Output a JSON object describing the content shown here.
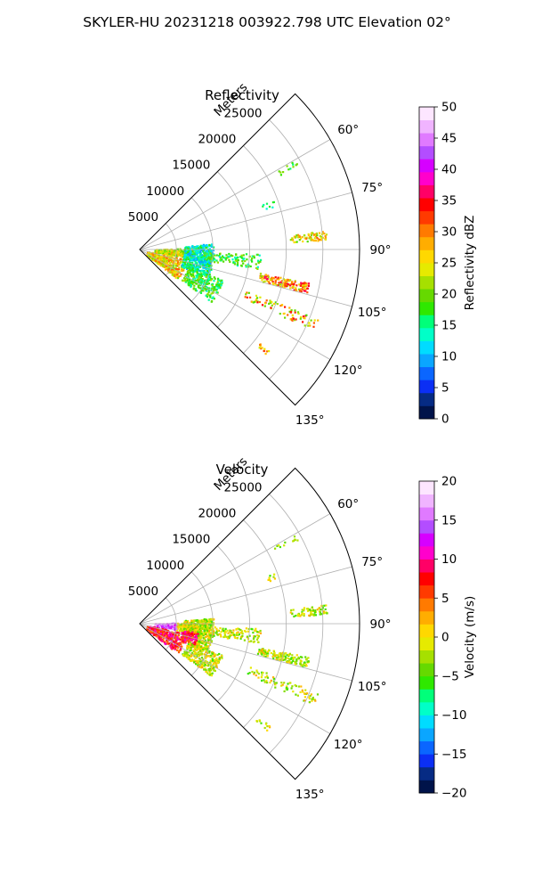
{
  "title": "SKYLER-HU  20231218  003922.798 UTC Elevation 02°",
  "chart_data": [
    {
      "type": "heatmap",
      "subtype": "polar-sector-ppi",
      "title": "Reflectivity",
      "radial_label": "Meters",
      "radial_ticks": [
        5000,
        10000,
        15000,
        20000,
        25000
      ],
      "radial_tick_labels": [
        "5000",
        "10000",
        "15000",
        "20000",
        "25000"
      ],
      "radial_max": 30000,
      "azimuth_range": [
        45,
        135
      ],
      "azimuth_ticks": [
        60,
        75,
        90,
        105,
        120,
        135
      ],
      "azimuth_tick_labels": [
        "60°",
        "75°",
        "90°",
        "105°",
        "120°",
        "135°"
      ],
      "grid": true,
      "colorbar": {
        "label": "Reflectivity dBZ",
        "vmin": 0,
        "vmax": 50,
        "ticks": [
          0,
          5,
          10,
          15,
          20,
          25,
          30,
          35,
          40,
          45,
          50
        ],
        "tick_labels": [
          "0",
          "5",
          "10",
          "15",
          "20",
          "25",
          "30",
          "35",
          "40",
          "45",
          "50"
        ],
        "stops": [
          "#00134a",
          "#062b84",
          "#0b2ff4",
          "#0a66ff",
          "#0aa6ff",
          "#00dcff",
          "#00ffc8",
          "#00ff7a",
          "#2fe800",
          "#66d900",
          "#a6e000",
          "#e6ea00",
          "#ffd800",
          "#ffad00",
          "#ff7a00",
          "#ff3a00",
          "#ff0000",
          "#ff0066",
          "#ff00cc",
          "#d600ff",
          "#b34dff",
          "#e07aff",
          "#f0b4ff",
          "#fde6ff"
        ]
      }
    },
    {
      "type": "heatmap",
      "subtype": "polar-sector-ppi",
      "title": "Velocity",
      "radial_label": "Meters",
      "radial_ticks": [
        5000,
        10000,
        15000,
        20000,
        25000
      ],
      "radial_tick_labels": [
        "5000",
        "10000",
        "15000",
        "20000",
        "25000"
      ],
      "radial_max": 30000,
      "azimuth_range": [
        45,
        135
      ],
      "azimuth_ticks": [
        60,
        75,
        90,
        105,
        120,
        135
      ],
      "azimuth_tick_labels": [
        "60°",
        "75°",
        "90°",
        "105°",
        "120°",
        "135°"
      ],
      "grid": true,
      "colorbar": {
        "label": "Velocity (m/s)",
        "vmin": -20,
        "vmax": 20,
        "ticks": [
          -20,
          -15,
          -10,
          -5,
          0,
          5,
          10,
          15,
          20
        ],
        "tick_labels": [
          "−20",
          "−15",
          "−10",
          "−5",
          "0",
          "5",
          "10",
          "15",
          "20"
        ],
        "stops": [
          "#00134a",
          "#062b84",
          "#0b2ff4",
          "#0a66ff",
          "#0aa6ff",
          "#00dcff",
          "#00ffc8",
          "#00ff7a",
          "#2fe800",
          "#66d900",
          "#a6e000",
          "#e6ea00",
          "#ffd800",
          "#ffad00",
          "#ff7a00",
          "#ff3a00",
          "#ff0000",
          "#ff0066",
          "#ff00cc",
          "#d600ff",
          "#b34dff",
          "#e07aff",
          "#f0b4ff",
          "#fde6ff"
        ]
      }
    }
  ]
}
